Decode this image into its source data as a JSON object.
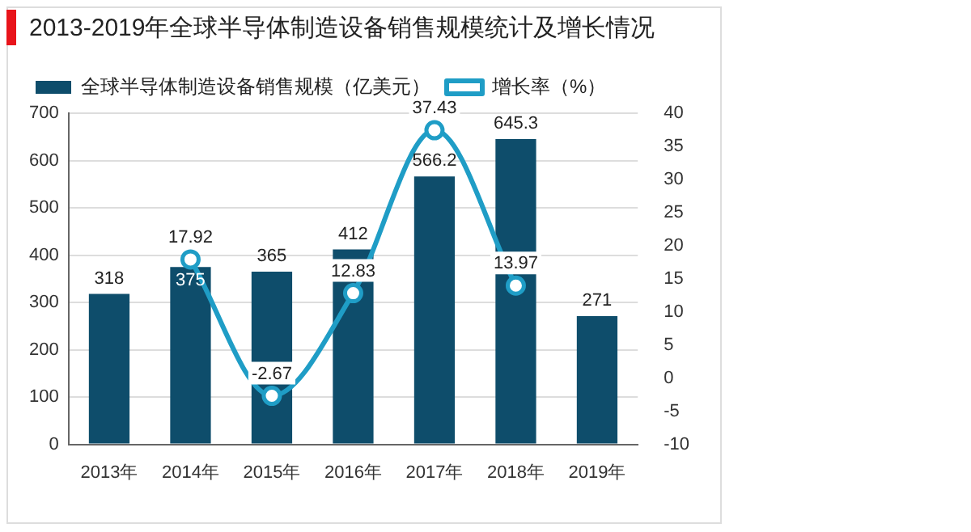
{
  "chart_data": {
    "type": "bar",
    "title": "2013-2019年全球半导体制造设备销售规模统计及增长情况",
    "categories": [
      "2013年",
      "2014年",
      "2015年",
      "2016年",
      "2017年",
      "2018年",
      "2019年"
    ],
    "series": [
      {
        "name": "全球半导体制造设备销售规模（亿美元）",
        "color": "#0e4d6b",
        "values": [
          318,
          375,
          365,
          412,
          566.2,
          645.3,
          271
        ]
      },
      {
        "name": "增长率（%）",
        "type": "line",
        "axis": "y2",
        "color": "#1f9dc6",
        "marker": "circle",
        "values": [
          null,
          17.92,
          -2.67,
          12.83,
          37.43,
          13.97,
          null
        ]
      }
    ],
    "ylim": [
      0,
      700
    ],
    "yticks": [
      0,
      100,
      200,
      300,
      400,
      500,
      600,
      700
    ],
    "y2lim": [
      -10,
      40
    ],
    "y2ticks": [
      -10,
      -5,
      0,
      5,
      10,
      15,
      20,
      25,
      30,
      35,
      40
    ],
    "grid": "y",
    "legend": "top left",
    "data_labels": true
  }
}
